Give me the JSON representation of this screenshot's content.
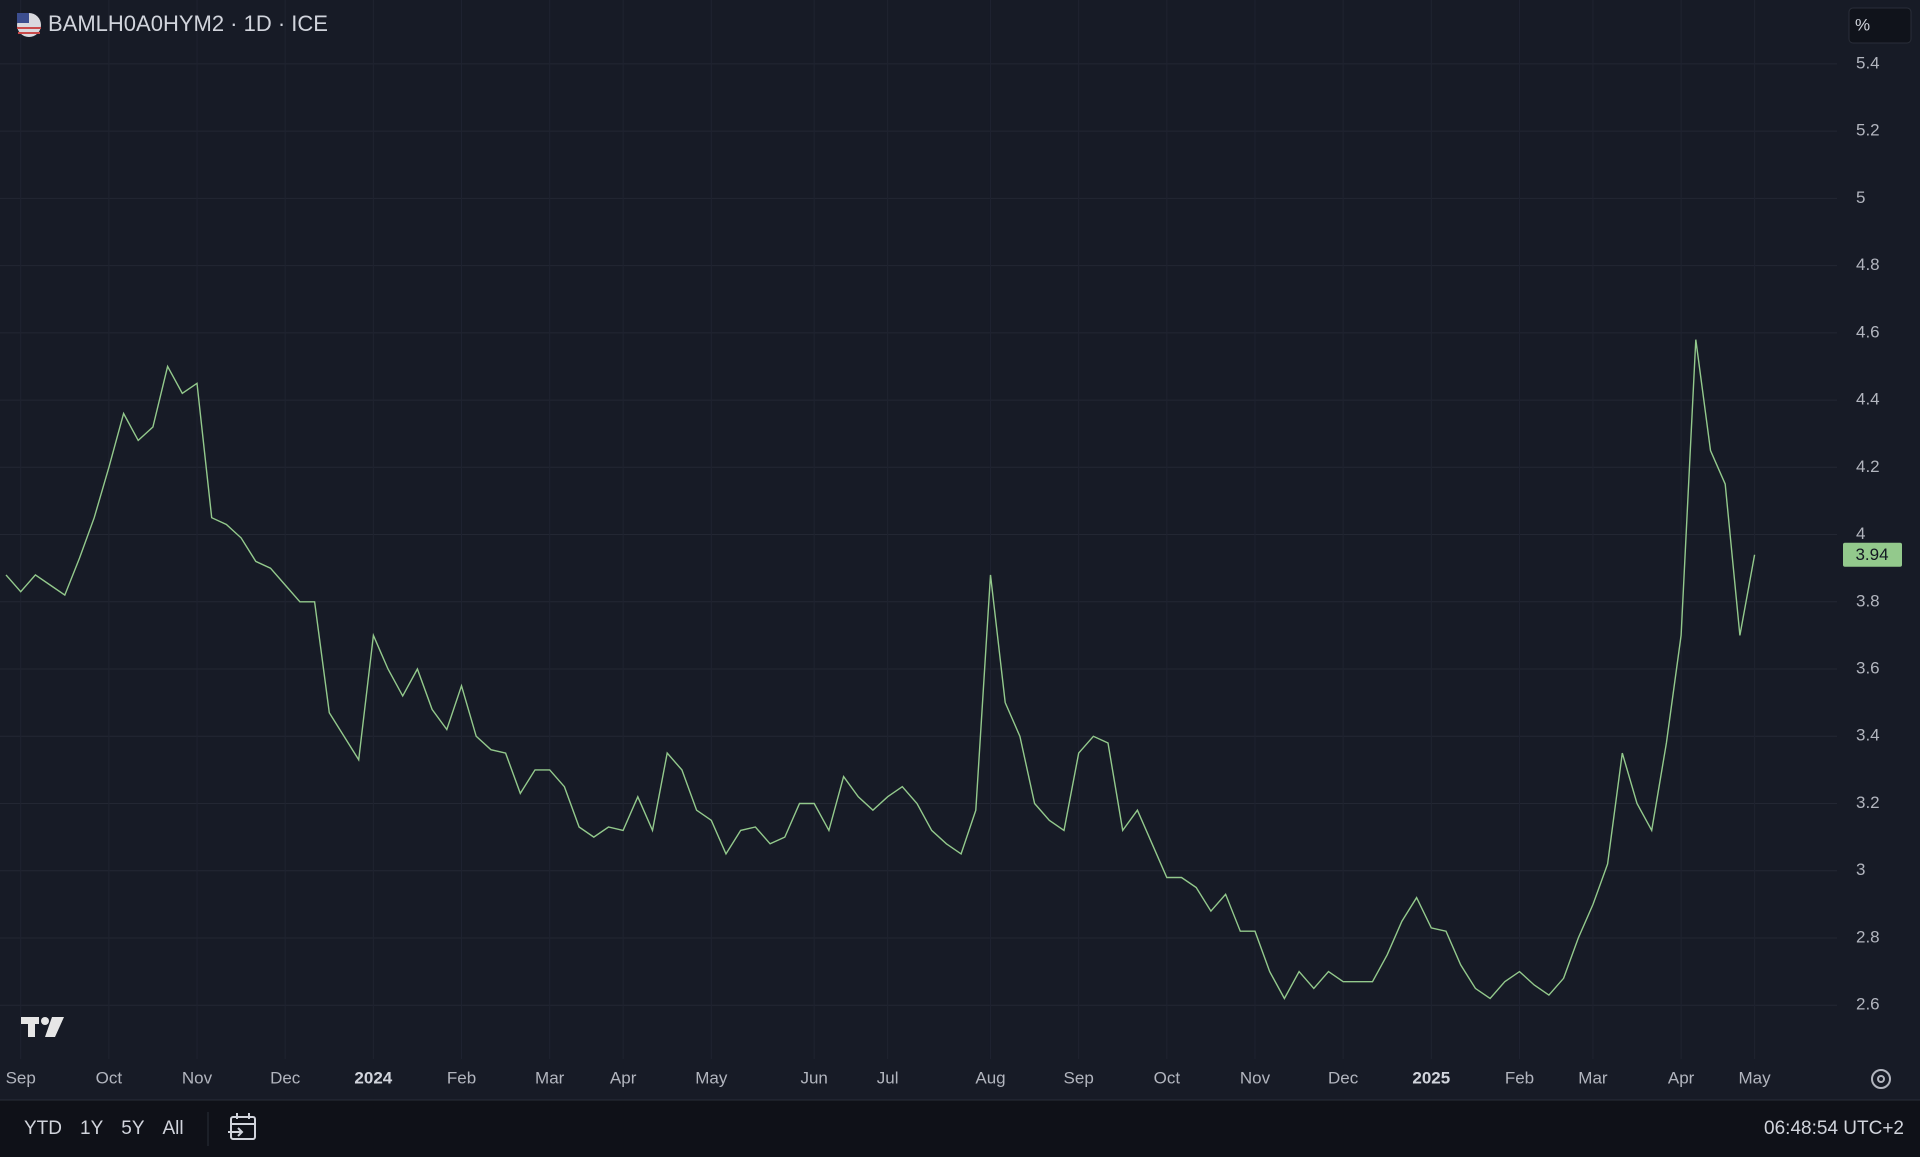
{
  "chart_data": {
    "type": "line",
    "title": "BAMLH0A0HYM2 · 1D · ICE",
    "unit": "%",
    "categories": [
      null,
      "Sep",
      null,
      null,
      null,
      null,
      null,
      "Oct",
      null,
      null,
      null,
      null,
      null,
      "Nov",
      null,
      null,
      null,
      null,
      null,
      "Dec",
      null,
      null,
      null,
      null,
      null,
      "2024",
      null,
      null,
      null,
      null,
      null,
      "Feb",
      null,
      null,
      null,
      null,
      null,
      "Mar",
      null,
      null,
      null,
      null,
      "Apr",
      null,
      null,
      null,
      null,
      null,
      "May",
      null,
      null,
      null,
      null,
      null,
      null,
      "Jun",
      null,
      null,
      null,
      null,
      "Jul",
      null,
      null,
      null,
      null,
      null,
      null,
      "Aug",
      null,
      null,
      null,
      null,
      null,
      "Sep",
      null,
      null,
      null,
      null,
      null,
      "Oct",
      null,
      null,
      null,
      null,
      null,
      "Nov",
      null,
      null,
      null,
      null,
      null,
      "Dec",
      null,
      null,
      null,
      null,
      null,
      "2025",
      null,
      null,
      null,
      null,
      null,
      "Feb",
      null,
      null,
      null,
      null,
      "Mar",
      null,
      null,
      null,
      null,
      null,
      "Apr",
      null,
      null,
      null,
      null,
      "May"
    ],
    "series": [
      {
        "color": "#93c98c",
        "values": [
          3.88,
          3.83,
          3.88,
          3.85,
          3.82,
          3.93,
          4.05,
          4.2,
          4.36,
          4.28,
          4.32,
          4.5,
          4.42,
          4.45,
          4.05,
          4.03,
          3.99,
          3.92,
          3.9,
          3.85,
          3.8,
          3.8,
          3.47,
          3.4,
          3.33,
          3.7,
          3.6,
          3.52,
          3.6,
          3.48,
          3.42,
          3.55,
          3.4,
          3.36,
          3.35,
          3.23,
          3.3,
          3.3,
          3.25,
          3.13,
          3.1,
          3.13,
          3.12,
          3.22,
          3.12,
          3.35,
          3.3,
          3.18,
          3.15,
          3.05,
          3.12,
          3.13,
          3.08,
          3.1,
          3.2,
          3.2,
          3.12,
          3.28,
          3.22,
          3.18,
          3.22,
          3.25,
          3.2,
          3.12,
          3.08,
          3.05,
          3.18,
          3.88,
          3.5,
          3.4,
          3.2,
          3.15,
          3.12,
          3.35,
          3.4,
          3.38,
          3.12,
          3.18,
          3.08,
          2.98,
          2.98,
          2.95,
          2.88,
          2.93,
          2.82,
          2.82,
          2.7,
          2.62,
          2.7,
          2.65,
          2.7,
          2.67,
          2.67,
          2.67,
          2.75,
          2.85,
          2.92,
          2.83,
          2.82,
          2.72,
          2.65,
          2.62,
          2.67,
          2.7,
          2.66,
          2.63,
          2.68,
          2.8,
          2.9,
          3.02,
          3.35,
          3.2,
          3.12,
          3.38,
          3.7,
          4.58,
          4.25,
          4.15,
          3.7,
          3.94
        ]
      }
    ],
    "ylim": [
      2.44,
      5.59
    ],
    "yticks": [
      2.6,
      2.8,
      3,
      3.2,
      3.4,
      3.6,
      3.8,
      4,
      4.2,
      4.4,
      4.6,
      4.8,
      5,
      5.2,
      5.4
    ],
    "grid": true
  },
  "toolbar": {
    "ranges": [
      "YTD",
      "1Y",
      "5Y",
      "All"
    ],
    "time": "06:48:54 UTC+2"
  }
}
